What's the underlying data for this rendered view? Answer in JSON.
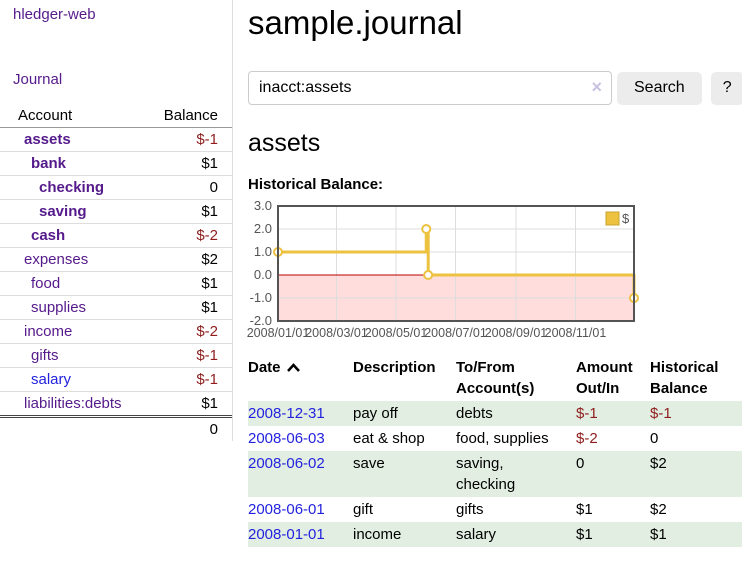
{
  "sidebar": {
    "app_title": "hledger-web",
    "journal_link": "Journal",
    "table": {
      "account_header": "Account",
      "balance_header": "Balance",
      "rows": [
        {
          "account": "assets",
          "balance": "$-1"
        },
        {
          "account": "bank",
          "balance": "$1"
        },
        {
          "account": "checking",
          "balance": "0"
        },
        {
          "account": "saving",
          "balance": "$1"
        },
        {
          "account": "cash",
          "balance": "$-2"
        },
        {
          "account": "expenses",
          "balance": "$2"
        },
        {
          "account": "food",
          "balance": "$1"
        },
        {
          "account": "supplies",
          "balance": "$1"
        },
        {
          "account": "income",
          "balance": "$-2"
        },
        {
          "account": "gifts",
          "balance": "$-1"
        },
        {
          "account": "salary",
          "balance": "$-1"
        },
        {
          "account": "liabilities:debts",
          "balance": "$1"
        }
      ],
      "total_balance": "0"
    }
  },
  "header": {
    "journal_title": "sample.journal"
  },
  "search": {
    "query_value": "inacct:assets",
    "clear_icon": "×",
    "search_button_label": "Search",
    "help_button_label": "?"
  },
  "account_page": {
    "heading": "assets",
    "chart_title": "Historical Balance:"
  },
  "chart_data": {
    "type": "line",
    "style": "step",
    "title": "Historical Balance",
    "xlim": [
      "2008-01-01",
      "2008-12-31"
    ],
    "ylim": [
      -2,
      3
    ],
    "series": [
      {
        "name": "$",
        "color": "#EDC240",
        "points": [
          [
            "2008-01-01",
            1
          ],
          [
            "2008-06-01",
            2
          ],
          [
            "2008-06-03",
            0
          ],
          [
            "2008-12-31",
            -1
          ]
        ]
      }
    ],
    "yticks": [
      {
        "label": "3.0",
        "value": 3
      },
      {
        "label": "2.0",
        "value": 2
      },
      {
        "label": "1.0",
        "value": 1
      },
      {
        "label": "0.0",
        "value": 0
      },
      {
        "label": "-1.0",
        "value": -1
      },
      {
        "label": "-2.0",
        "value": -2
      }
    ],
    "xticks": [
      {
        "label": "2008/01/01",
        "date": "2008-01-01"
      },
      {
        "label": "2008/03/01",
        "date": "2008-03-01"
      },
      {
        "label": "2008/05/01",
        "date": "2008-05-01"
      },
      {
        "label": "2008/07/01",
        "date": "2008-07-01"
      },
      {
        "label": "2008/09/01",
        "date": "2008-09-01"
      },
      {
        "label": "2008/11/01",
        "date": "2008-11-01"
      }
    ],
    "legend": {
      "label": "$",
      "position": "top-right"
    },
    "grid": true,
    "negative_region_color": "#FFDDDD",
    "zero_line_color": "#BB0000"
  },
  "register": {
    "sort": {
      "column": "date",
      "direction": "ascending"
    },
    "headers": {
      "date": "Date",
      "description": "Description",
      "account": "To/From Account(s)",
      "amount": "Amount Out/In",
      "balance": "Historical Balance"
    },
    "rows": [
      {
        "date": "2008-12-31",
        "description": "pay off",
        "accounts": "debts",
        "amount": "$-1",
        "balance": "$-1"
      },
      {
        "date": "2008-06-03",
        "description": "eat & shop",
        "accounts": "food, supplies",
        "amount": "$-2",
        "balance": "0"
      },
      {
        "date": "2008-06-02",
        "description": "save",
        "accounts": "saving, checking",
        "amount": "0",
        "balance": "$2"
      },
      {
        "date": "2008-06-01",
        "description": "gift",
        "accounts": "gifts",
        "amount": "$1",
        "balance": "$2"
      },
      {
        "date": "2008-01-01",
        "description": "income",
        "accounts": "salary",
        "amount": "$1",
        "balance": "$1"
      }
    ]
  }
}
